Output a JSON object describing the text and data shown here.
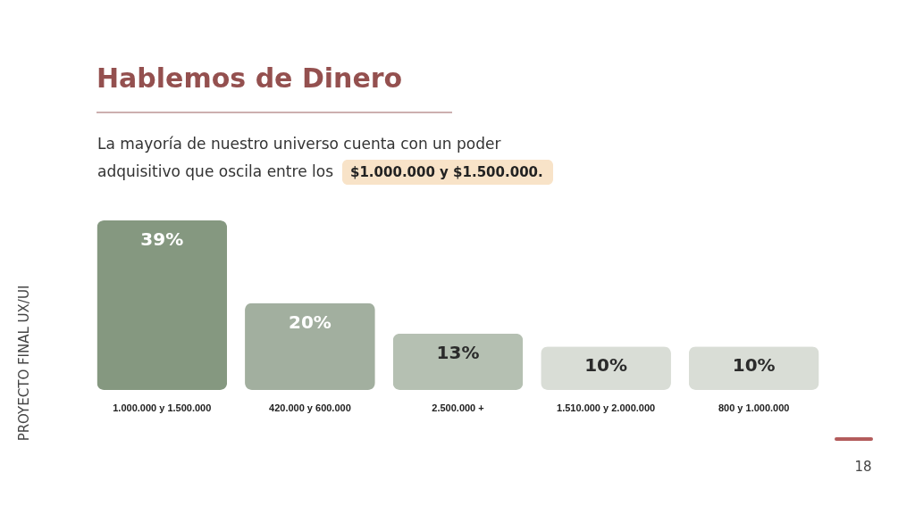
{
  "chart_data": {
    "type": "bar",
    "title": "Hablemos de Dinero",
    "subtitle": "La mayoría de nuestro universo cuenta con un poder adquisitivo que oscila entre los $1.000.000 y $1.500.000.",
    "categories": [
      "1.000.000 y 1.500.000",
      "420.000 y 600.000",
      "2.500.000 +",
      "1.510.000 y 2.000.000",
      "800 y 1.000.000"
    ],
    "values": [
      39,
      20,
      13,
      10,
      10
    ],
    "value_labels": [
      "39%",
      "20%",
      "13%",
      "10%",
      "10%"
    ],
    "colors": [
      "#859880",
      "#a2af9f",
      "#b5c0b2",
      "#d9ddd6",
      "#d9ddd6"
    ],
    "annotations": [
      "PROYECTO FINAL UX/UI",
      "18"
    ]
  }
}
